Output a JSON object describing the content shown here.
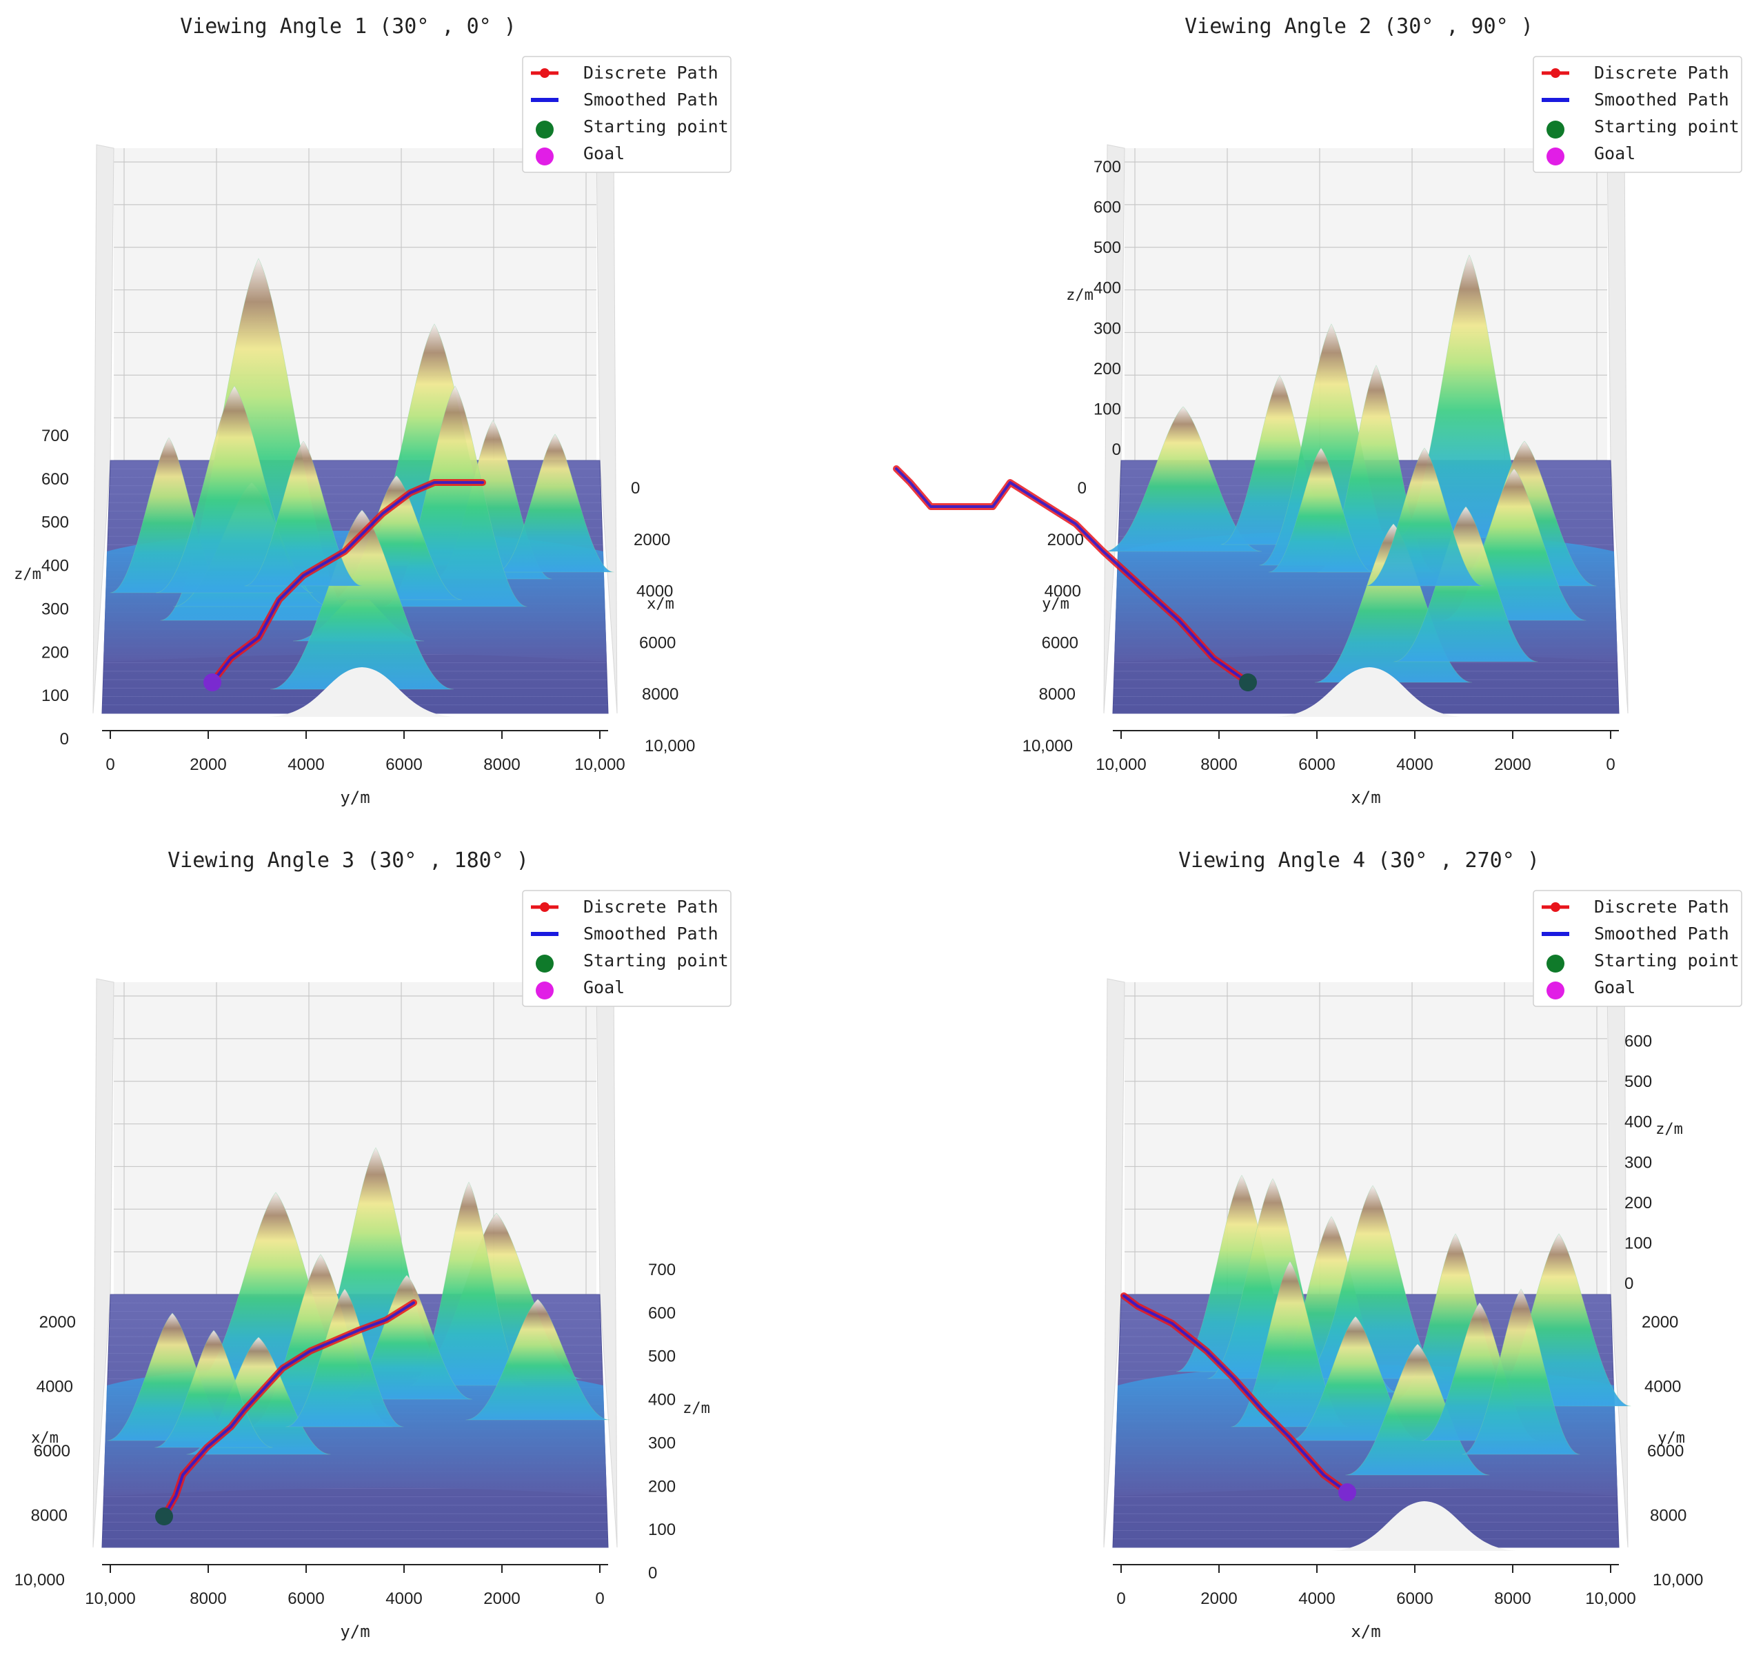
{
  "colors": {
    "discrete": "#e8141b",
    "smoothed": "#1a1adf",
    "start": "#0f7a2a",
    "goal": "#e11ee6",
    "floor": "#5b5ea8",
    "pane": "#f4f4f4",
    "grid": "#c8c8c8",
    "axis": "#222222"
  },
  "legend": {
    "items": [
      {
        "label": "Discrete Path",
        "kind": "line-marker",
        "color": "#e8141b"
      },
      {
        "label": "Smoothed Path",
        "kind": "line",
        "color": "#1a1adf"
      },
      {
        "label": "Starting point",
        "kind": "dot",
        "color": "#0f7a2a"
      },
      {
        "label": "Goal",
        "kind": "dot",
        "color": "#e11ee6"
      }
    ]
  },
  "chart_data": [
    {
      "type": "surface3d",
      "title": "Viewing Angle 1 (30° , 0° )",
      "view": {
        "elev": 30,
        "azim": 0
      },
      "axes": {
        "bottom": {
          "label": "y/m",
          "ticks": [
            "0",
            "2000",
            "4000",
            "6000",
            "8000",
            "10,000"
          ]
        },
        "right": {
          "label": "x/m",
          "ticks": [
            "0",
            "2000",
            "4000",
            "6000",
            "8000",
            "10,000"
          ]
        },
        "z": {
          "label": "z/m",
          "side": "left",
          "ticks": [
            "0",
            "100",
            "200",
            "300",
            "400",
            "500",
            "600",
            "700"
          ]
        }
      },
      "legend": "top-right"
    },
    {
      "type": "surface3d",
      "title": "Viewing Angle 2 (30° , 90° )",
      "view": {
        "elev": 30,
        "azim": 90
      },
      "axes": {
        "bottom": {
          "label": "x/m",
          "ticks": [
            "10,000",
            "8000",
            "6000",
            "4000",
            "2000",
            "0"
          ]
        },
        "left": {
          "label": "y/m",
          "ticks": [
            "0",
            "2000",
            "4000",
            "6000",
            "8000",
            "10,000"
          ]
        },
        "z": {
          "label": "z/m",
          "side": "left",
          "ticks": [
            "0",
            "100",
            "200",
            "300",
            "400",
            "500",
            "600",
            "700"
          ]
        }
      },
      "legend": "top-right"
    },
    {
      "type": "surface3d",
      "title": "Viewing Angle 3 (30° , 180° )",
      "view": {
        "elev": 30,
        "azim": 180
      },
      "axes": {
        "bottom": {
          "label": "y/m",
          "ticks": [
            "10,000",
            "8000",
            "6000",
            "4000",
            "2000",
            "0"
          ]
        },
        "left": {
          "label": "x/m",
          "ticks": [
            "2000",
            "4000",
            "6000",
            "8000",
            "10,000"
          ]
        },
        "z": {
          "label": "z/m",
          "side": "right",
          "ticks": [
            "0",
            "100",
            "200",
            "300",
            "400",
            "500",
            "600",
            "700"
          ]
        }
      },
      "legend": "top-right"
    },
    {
      "type": "surface3d",
      "title": "Viewing Angle 4 (30° , 270° )",
      "view": {
        "elev": 30,
        "azim": 270
      },
      "axes": {
        "bottom": {
          "label": "x/m",
          "ticks": [
            "0",
            "2000",
            "4000",
            "6000",
            "8000",
            "10,000"
          ]
        },
        "right": {
          "label": "y/m",
          "ticks": [
            "2000",
            "4000",
            "6000",
            "8000",
            "10,000"
          ]
        },
        "z": {
          "label": "z/m",
          "side": "right",
          "ticks": [
            "0",
            "100",
            "200",
            "300",
            "400",
            "500",
            "600",
            "700"
          ]
        }
      },
      "legend": "top-right"
    }
  ]
}
